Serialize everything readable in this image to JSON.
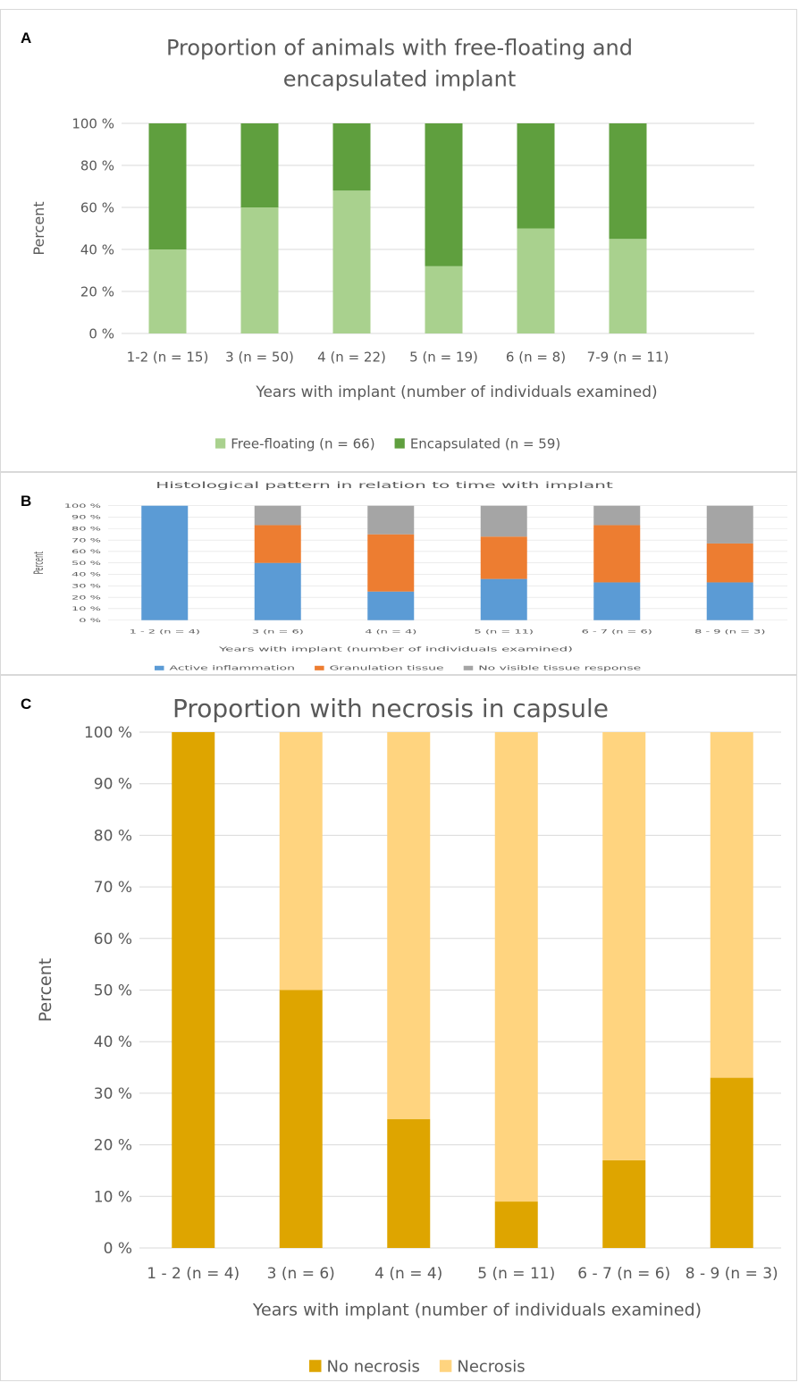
{
  "panels": [
    {
      "letter": "A",
      "chart_data": {
        "type": "bar",
        "stacked": true,
        "title": "Proportion of animals with free-floating and encapsulated implant",
        "title_lines": [
          "Proportion of animals with free-floating and",
          "encapsulated implant"
        ],
        "xlabel": "Years with implant (number of individuals examined)",
        "ylabel": "Percent",
        "ylim": [
          0,
          100
        ],
        "yticks": [
          "0 %",
          "20 %",
          "40 %",
          "60 %",
          "80 %",
          "100 %"
        ],
        "categories": [
          "1-2 (n = 15)",
          "3 (n = 50)",
          "4 (n = 22)",
          "5 (n = 19)",
          "6 (n = 8)",
          "7-9 (n = 11)"
        ],
        "series": [
          {
            "name": "Free-floating (n = 66)",
            "color": "#a9d18e",
            "values": [
              40,
              60,
              68,
              32,
              50,
              45
            ]
          },
          {
            "name": "Encapsulated (n = 59)",
            "color": "#5f9f3e",
            "values": [
              60,
              40,
              32,
              68,
              50,
              55
            ]
          }
        ],
        "grid": true,
        "legend": "bottom"
      }
    },
    {
      "letter": "B",
      "chart_data": {
        "type": "bar",
        "stacked": true,
        "title": "Histological pattern in relation to time with implant",
        "xlabel": "Years with implant (number of individuals examined)",
        "ylabel": "Percent",
        "ylim": [
          0,
          100
        ],
        "yticks": [
          "0 %",
          "10 %",
          "20 %",
          "30 %",
          "40 %",
          "50 %",
          "60 %",
          "70 %",
          "80 %",
          "90 %",
          "100 %"
        ],
        "categories": [
          "1 - 2 (n = 4)",
          "3 (n = 6)",
          "4 (n = 4)",
          "5 (n = 11)",
          "6 - 7 (n = 6)",
          "8 - 9 (n = 3)"
        ],
        "series": [
          {
            "name": "Active inflammation",
            "color": "#5b9bd5",
            "values": [
              100,
              50,
              25,
              36,
              33,
              33
            ]
          },
          {
            "name": "Granulation tissue",
            "color": "#ed7d31",
            "values": [
              0,
              33,
              50,
              37,
              50,
              34
            ]
          },
          {
            "name": "No visible tissue response",
            "color": "#a5a5a5",
            "values": [
              0,
              17,
              25,
              27,
              17,
              33
            ]
          }
        ],
        "grid": true,
        "legend": "bottom"
      }
    },
    {
      "letter": "C",
      "chart_data": {
        "type": "bar",
        "stacked": true,
        "title": "Proportion with necrosis in capsule",
        "xlabel": "Years with implant (number of individuals examined)",
        "ylabel": "Percent",
        "ylim": [
          0,
          100
        ],
        "yticks": [
          "0 %",
          "10 %",
          "20 %",
          "30 %",
          "40 %",
          "50 %",
          "60 %",
          "70 %",
          "80 %",
          "90 %",
          "100 %"
        ],
        "categories": [
          "1 - 2 (n = 4)",
          "3 (n = 6)",
          "4 (n = 4)",
          "5 (n = 11)",
          "6 - 7 (n = 6)",
          "8 - 9 (n = 3)"
        ],
        "series": [
          {
            "name": "No necrosis",
            "color": "#dea500",
            "values": [
              100,
              50,
              25,
              9,
              17,
              33
            ]
          },
          {
            "name": "Necrosis",
            "color": "#ffd47f",
            "values": [
              0,
              50,
              75,
              91,
              83,
              67
            ]
          }
        ],
        "grid": true,
        "legend": "bottom"
      }
    }
  ]
}
